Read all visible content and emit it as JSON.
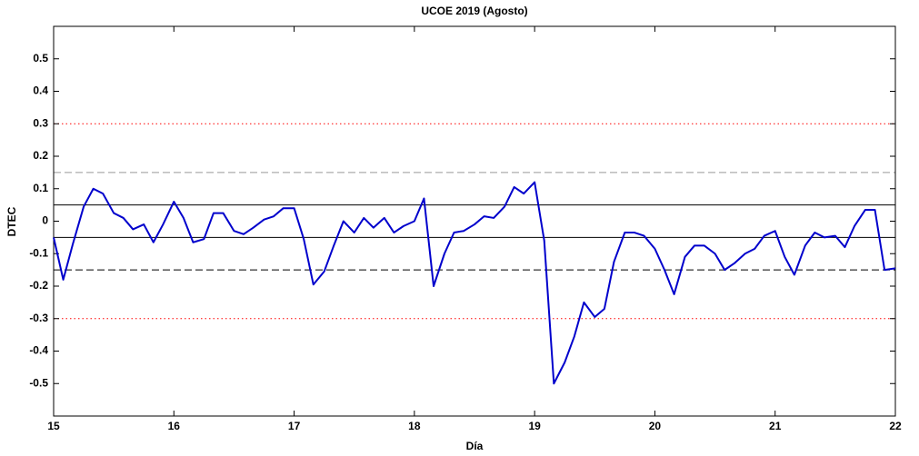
{
  "chart_data": {
    "type": "line",
    "title": "UCOE 2019 (Agosto)",
    "x_label": "Día",
    "y_label": "DTEC",
    "xlim": [
      15,
      22
    ],
    "ylim": [
      -0.6,
      0.6
    ],
    "xticks": [
      15,
      16,
      17,
      18,
      19,
      20,
      21,
      22
    ],
    "yticks": [
      -0.5,
      -0.4,
      -0.3,
      -0.2,
      -0.1,
      0,
      0.1,
      0.2,
      0.3,
      0.4,
      0.5
    ],
    "reference_lines": [
      {
        "value": 0.3,
        "color": "#ff0000",
        "style": "dotted"
      },
      {
        "value": -0.3,
        "color": "#ff0000",
        "style": "dotted"
      },
      {
        "value": 0.15,
        "color": "#999999",
        "style": "dashed"
      },
      {
        "value": -0.15,
        "color": "#000000",
        "style": "dashed"
      },
      {
        "value": 0.05,
        "color": "#000000",
        "style": "solid"
      },
      {
        "value": -0.05,
        "color": "#000000",
        "style": "solid"
      }
    ],
    "series": [
      {
        "color": "#0000cc",
        "x": [
          15.0,
          15.08,
          15.16,
          15.25,
          15.33,
          15.41,
          15.5,
          15.58,
          15.66,
          15.75,
          15.83,
          15.91,
          16.0,
          16.08,
          16.16,
          16.25,
          16.33,
          16.41,
          16.5,
          16.58,
          16.66,
          16.75,
          16.83,
          16.91,
          17.0,
          17.08,
          17.16,
          17.25,
          17.33,
          17.41,
          17.5,
          17.58,
          17.66,
          17.75,
          17.83,
          17.91,
          18.0,
          18.08,
          18.16,
          18.25,
          18.33,
          18.41,
          18.5,
          18.58,
          18.66,
          18.75,
          18.83,
          18.91,
          19.0,
          19.08,
          19.16,
          19.25,
          19.33,
          19.41,
          19.5,
          19.58,
          19.66,
          19.75,
          19.83,
          19.91,
          20.0,
          20.08,
          20.16,
          20.25,
          20.33,
          20.41,
          20.5,
          20.58,
          20.66,
          20.75,
          20.83,
          20.91,
          21.0,
          21.08,
          21.16,
          21.25,
          21.33,
          21.41,
          21.5,
          21.58,
          21.66,
          21.75,
          21.83,
          21.91,
          22.0
        ],
        "values": [
          -0.05,
          -0.18,
          -0.07,
          0.045,
          0.1,
          0.085,
          0.025,
          0.01,
          -0.025,
          -0.01,
          -0.065,
          -0.01,
          0.06,
          0.01,
          -0.065,
          -0.055,
          0.025,
          0.025,
          -0.03,
          -0.04,
          -0.02,
          0.005,
          0.015,
          0.04,
          0.04,
          -0.055,
          -0.195,
          -0.155,
          -0.075,
          0.0,
          -0.035,
          0.01,
          -0.02,
          0.01,
          -0.035,
          -0.015,
          0.0,
          0.07,
          -0.2,
          -0.1,
          -0.035,
          -0.03,
          -0.01,
          0.015,
          0.01,
          0.045,
          0.105,
          0.085,
          0.12,
          -0.06,
          -0.5,
          -0.435,
          -0.355,
          -0.25,
          -0.295,
          -0.27,
          -0.125,
          -0.035,
          -0.035,
          -0.045,
          -0.085,
          -0.15,
          -0.225,
          -0.11,
          -0.075,
          -0.075,
          -0.1,
          -0.15,
          -0.13,
          -0.1,
          -0.085,
          -0.045,
          -0.03,
          -0.11,
          -0.165,
          -0.075,
          -0.035,
          -0.05,
          -0.045,
          -0.08,
          -0.015,
          0.035,
          0.035,
          -0.15,
          -0.145
        ]
      }
    ]
  }
}
